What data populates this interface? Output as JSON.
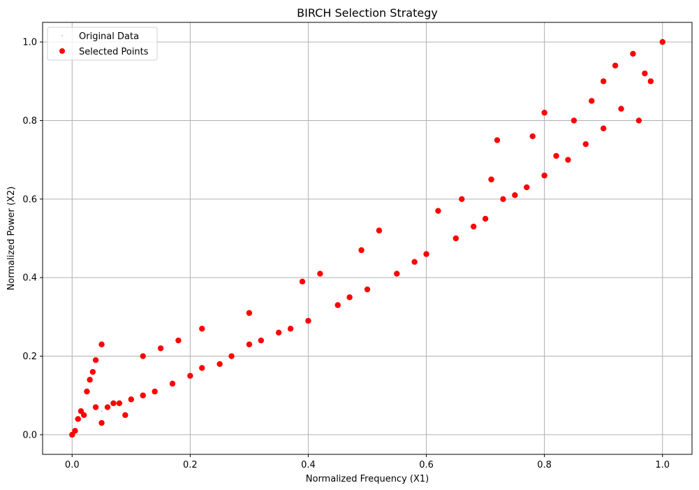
{
  "chart_data": {
    "type": "scatter",
    "title": "BIRCH Selection Strategy",
    "xlabel": "Normalized Frequency (X1)",
    "ylabel": "Normalized Power (X2)",
    "xlim": [
      -0.05,
      1.05
    ],
    "ylim": [
      -0.05,
      1.05
    ],
    "x_ticks": [
      0.0,
      0.2,
      0.4,
      0.6,
      0.8,
      1.0
    ],
    "x_tick_labels": [
      "0.0",
      "0.2",
      "0.4",
      "0.6",
      "0.8",
      "1.0"
    ],
    "y_ticks": [
      0.0,
      0.2,
      0.4,
      0.6,
      0.8,
      1.0
    ],
    "y_tick_labels": [
      "0.0",
      "0.2",
      "0.4",
      "0.6",
      "0.8",
      "1.0"
    ],
    "grid": true,
    "legend_position": "top-left",
    "series": [
      {
        "name": "Original Data",
        "color": "#c9daf0",
        "marker": "small-dot",
        "points": [
          [
            0.0,
            0.0
          ],
          [
            0.05,
            0.06
          ],
          [
            0.1,
            0.09
          ],
          [
            0.2,
            0.15
          ],
          [
            0.3,
            0.23
          ],
          [
            0.4,
            0.29
          ],
          [
            0.5,
            0.37
          ],
          [
            0.6,
            0.46
          ],
          [
            0.7,
            0.55
          ],
          [
            0.8,
            0.66
          ],
          [
            0.9,
            0.78
          ],
          [
            1.0,
            1.0
          ]
        ]
      },
      {
        "name": "Selected Points",
        "color": "#ff0000",
        "marker": "circle",
        "points": [
          [
            0.0,
            0.0
          ],
          [
            0.005,
            0.01
          ],
          [
            0.01,
            0.04
          ],
          [
            0.015,
            0.06
          ],
          [
            0.02,
            0.05
          ],
          [
            0.025,
            0.11
          ],
          [
            0.03,
            0.14
          ],
          [
            0.035,
            0.16
          ],
          [
            0.04,
            0.19
          ],
          [
            0.05,
            0.23
          ],
          [
            0.04,
            0.07
          ],
          [
            0.05,
            0.03
          ],
          [
            0.06,
            0.07
          ],
          [
            0.07,
            0.08
          ],
          [
            0.08,
            0.08
          ],
          [
            0.09,
            0.05
          ],
          [
            0.1,
            0.09
          ],
          [
            0.12,
            0.1
          ],
          [
            0.12,
            0.2
          ],
          [
            0.14,
            0.11
          ],
          [
            0.15,
            0.22
          ],
          [
            0.17,
            0.13
          ],
          [
            0.18,
            0.24
          ],
          [
            0.2,
            0.15
          ],
          [
            0.22,
            0.17
          ],
          [
            0.22,
            0.27
          ],
          [
            0.25,
            0.18
          ],
          [
            0.27,
            0.2
          ],
          [
            0.3,
            0.23
          ],
          [
            0.3,
            0.31
          ],
          [
            0.32,
            0.24
          ],
          [
            0.35,
            0.26
          ],
          [
            0.37,
            0.27
          ],
          [
            0.4,
            0.29
          ],
          [
            0.39,
            0.39
          ],
          [
            0.42,
            0.41
          ],
          [
            0.45,
            0.33
          ],
          [
            0.47,
            0.35
          ],
          [
            0.5,
            0.37
          ],
          [
            0.49,
            0.47
          ],
          [
            0.52,
            0.52
          ],
          [
            0.55,
            0.41
          ],
          [
            0.58,
            0.44
          ],
          [
            0.6,
            0.46
          ],
          [
            0.62,
            0.57
          ],
          [
            0.65,
            0.5
          ],
          [
            0.66,
            0.6
          ],
          [
            0.68,
            0.53
          ],
          [
            0.7,
            0.55
          ],
          [
            0.71,
            0.65
          ],
          [
            0.72,
            0.75
          ],
          [
            0.73,
            0.6
          ],
          [
            0.75,
            0.61
          ],
          [
            0.77,
            0.63
          ],
          [
            0.78,
            0.76
          ],
          [
            0.8,
            0.66
          ],
          [
            0.8,
            0.82
          ],
          [
            0.82,
            0.71
          ],
          [
            0.84,
            0.7
          ],
          [
            0.85,
            0.8
          ],
          [
            0.87,
            0.74
          ],
          [
            0.88,
            0.85
          ],
          [
            0.9,
            0.78
          ],
          [
            0.9,
            0.9
          ],
          [
            0.92,
            0.94
          ],
          [
            0.93,
            0.83
          ],
          [
            0.95,
            0.97
          ],
          [
            0.96,
            0.8
          ],
          [
            0.97,
            0.92
          ],
          [
            0.98,
            0.9
          ],
          [
            1.0,
            1.0
          ]
        ]
      }
    ]
  }
}
